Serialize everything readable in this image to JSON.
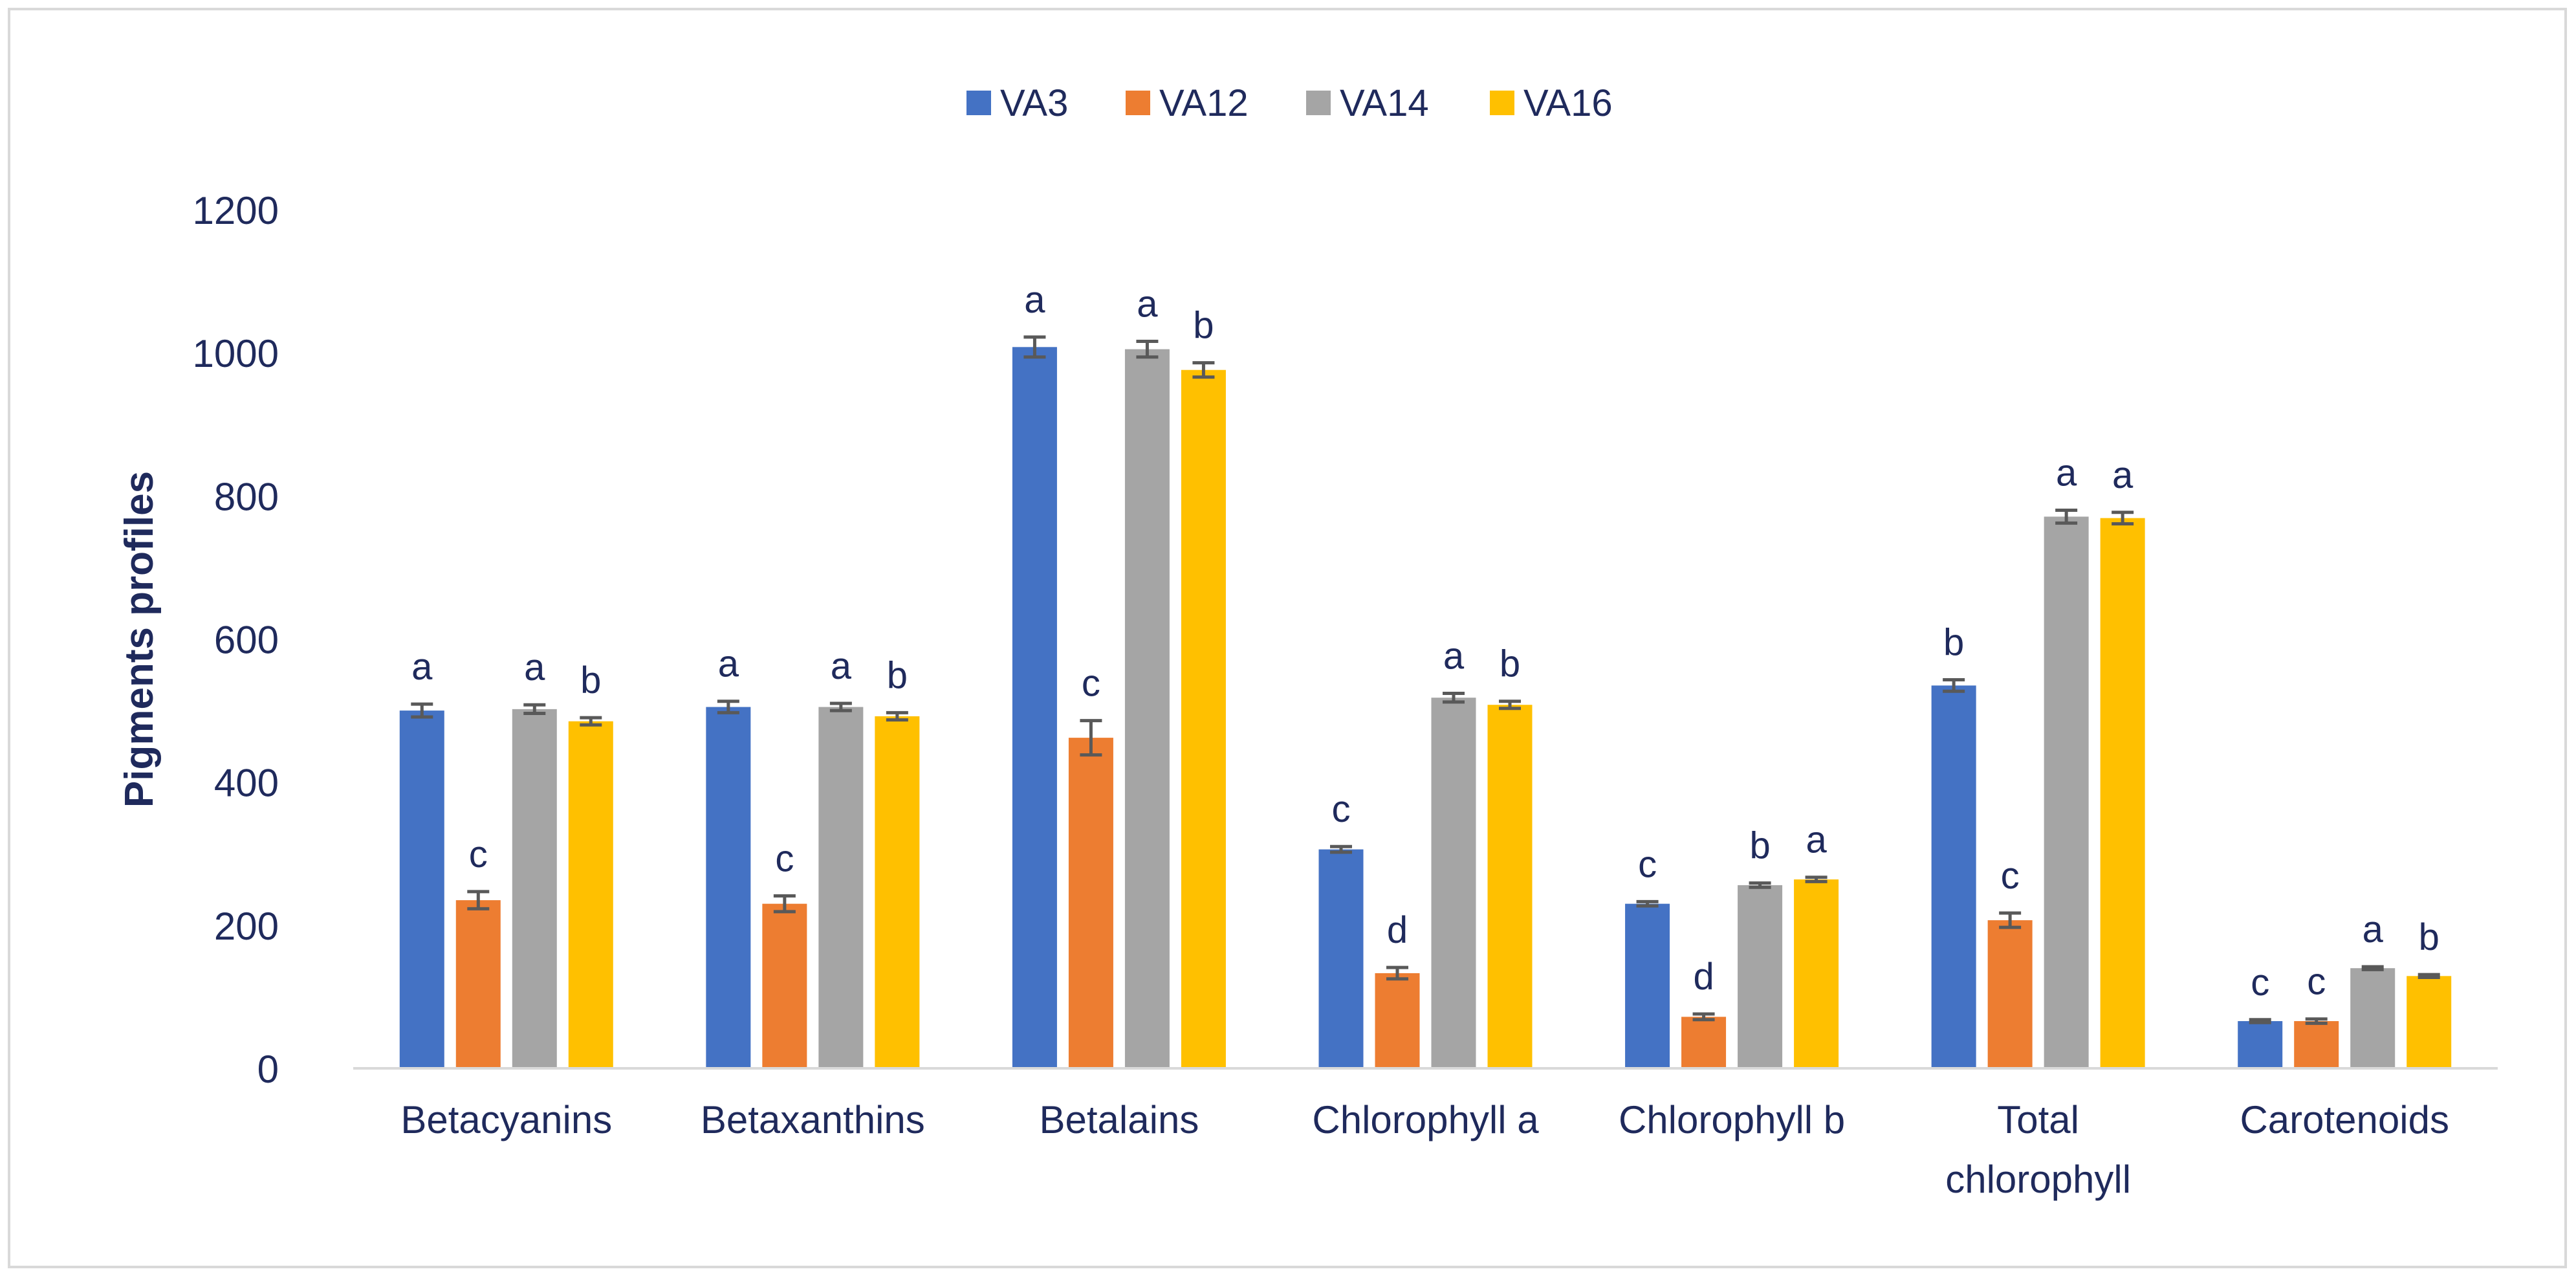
{
  "chart_data": {
    "type": "bar",
    "title": "",
    "xlabel": "",
    "ylabel": "Pigments profiles",
    "ylim": [
      0,
      1200
    ],
    "yticks": [
      0,
      200,
      400,
      600,
      800,
      1000,
      1200
    ],
    "legend_position": "top-center",
    "grid": false,
    "categories": [
      "Betacyanins",
      "Betaxanthins",
      "Betalains",
      "Chlorophyll a",
      "Chlorophyll b",
      "Total chlorophyll",
      "Carotenoids"
    ],
    "category_lines": [
      [
        "Betacyanins"
      ],
      [
        "Betaxanthins"
      ],
      [
        "Betalains"
      ],
      [
        "Chlorophyll a"
      ],
      [
        "Chlorophyll b"
      ],
      [
        "Total",
        "chlorophyll"
      ],
      [
        "Carotenoids"
      ]
    ],
    "series": [
      {
        "name": "VA3",
        "color": "#4472C4",
        "values": [
          500,
          505,
          1008,
          306,
          230,
          535,
          66
        ],
        "errors": [
          9,
          8,
          14,
          4,
          3,
          8,
          2
        ],
        "letters": [
          "a",
          "a",
          "a",
          "c",
          "c",
          "b",
          "c"
        ]
      },
      {
        "name": "VA12",
        "color": "#ED7D31",
        "values": [
          235,
          230,
          462,
          133,
          72,
          207,
          66
        ],
        "errors": [
          12,
          11,
          24,
          8,
          4,
          10,
          3
        ],
        "letters": [
          "c",
          "c",
          "c",
          "d",
          "d",
          "c",
          "c"
        ]
      },
      {
        "name": "VA14",
        "color": "#A5A5A5",
        "values": [
          502,
          505,
          1005,
          518,
          256,
          771,
          140
        ],
        "errors": [
          6,
          5,
          11,
          6,
          3,
          9,
          2
        ],
        "letters": [
          "a",
          "a",
          "a",
          "a",
          "b",
          "a",
          "a"
        ]
      },
      {
        "name": "VA16",
        "color": "#FFC000",
        "values": [
          485,
          492,
          976,
          508,
          264,
          769,
          129
        ],
        "errors": [
          5,
          5,
          10,
          5,
          3,
          8,
          2
        ],
        "letters": [
          "b",
          "b",
          "b",
          "b",
          "a",
          "a",
          "b"
        ]
      }
    ]
  }
}
